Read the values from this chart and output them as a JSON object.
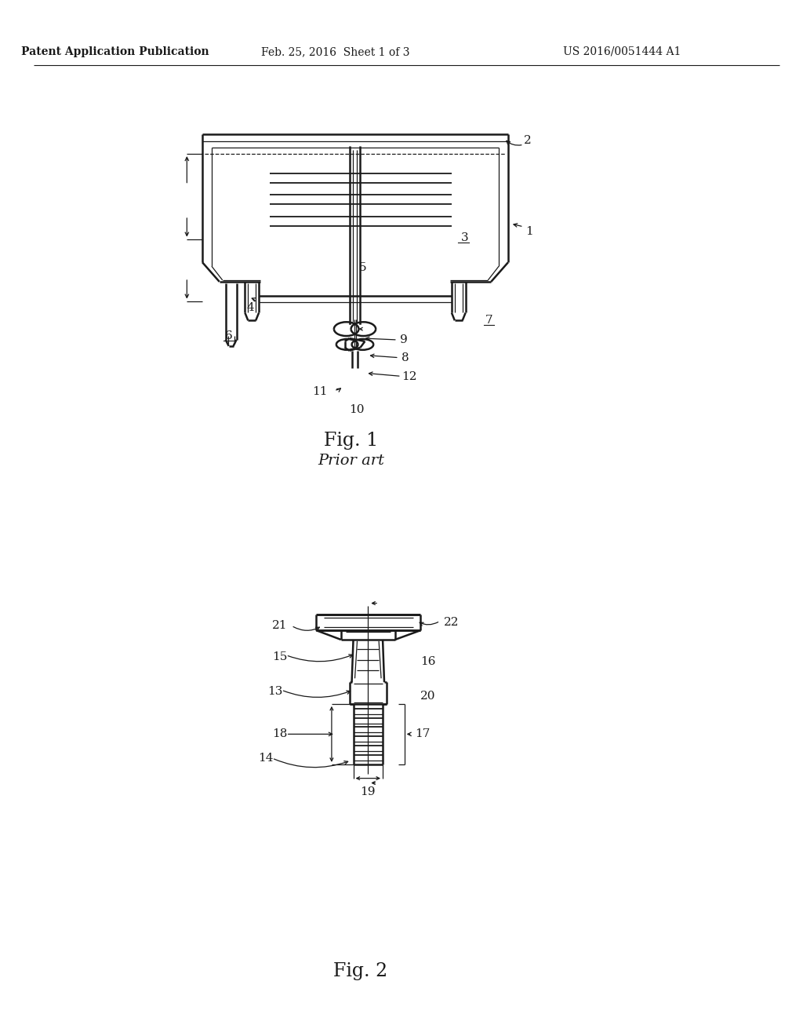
{
  "bg_color": "#ffffff",
  "header_text": "Patent Application Publication",
  "header_date": "Feb. 25, 2016  Sheet 1 of 3",
  "header_patent": "US 2016/0051444 A1",
  "fig1_caption": "Fig. 1",
  "fig1_subcaption": "Prior art",
  "fig2_caption": "Fig. 2",
  "line_color": "#1a1a1a",
  "line_width": 1.8,
  "thin_line": 0.9,
  "med_line": 1.3
}
